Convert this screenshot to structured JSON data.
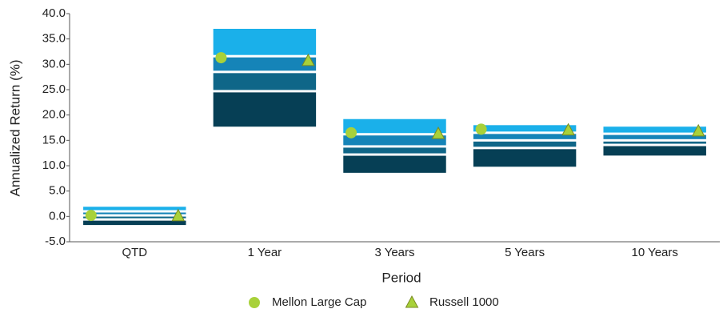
{
  "chart_data": {
    "type": "floating-range",
    "x_label": "Period",
    "y_label": "Annualized Return (%)",
    "categories": [
      "QTD",
      "1 Year",
      "3 Years",
      "5 Years",
      "10 Years"
    ],
    "ranges": [
      [
        1.9,
        1.0,
        0.2,
        -0.6,
        -1.7
      ],
      [
        37.0,
        31.6,
        28.5,
        24.7,
        17.7
      ],
      [
        19.2,
        16.2,
        13.8,
        12.2,
        8.6
      ],
      [
        18.0,
        16.5,
        15.0,
        13.5,
        9.8
      ],
      [
        17.7,
        16.3,
        15.0,
        14.1,
        12.0
      ]
    ],
    "range_colors": [
      "#1ab0ea",
      "#1584b8",
      "#0f6688",
      "#063f55"
    ],
    "series": [
      {
        "name": "Mellon Large Cap",
        "marker": "circle",
        "color": "#a8d13a",
        "values": [
          0.2,
          31.3,
          16.5,
          17.2,
          null
        ]
      },
      {
        "name": "Russell 1000",
        "marker": "triangle",
        "color": "#a8d13a",
        "values": [
          0.1,
          30.7,
          16.3,
          17.0,
          16.8
        ]
      }
    ],
    "ylim": [
      -5,
      40
    ],
    "yticks": [
      {
        "value": -5,
        "label": "-5.0"
      },
      {
        "value": 0,
        "label": "0.0"
      },
      {
        "value": 5,
        "label": "5.0"
      },
      {
        "value": 10,
        "label": "10.0"
      },
      {
        "value": 15,
        "label": "15.0"
      },
      {
        "value": 20,
        "label": "20.0"
      },
      {
        "value": 25,
        "label": "25.0"
      },
      {
        "value": 30,
        "label": "30.0"
      },
      {
        "value": 35,
        "label": "35.0"
      },
      {
        "value": 40,
        "label": "40.0"
      }
    ]
  }
}
